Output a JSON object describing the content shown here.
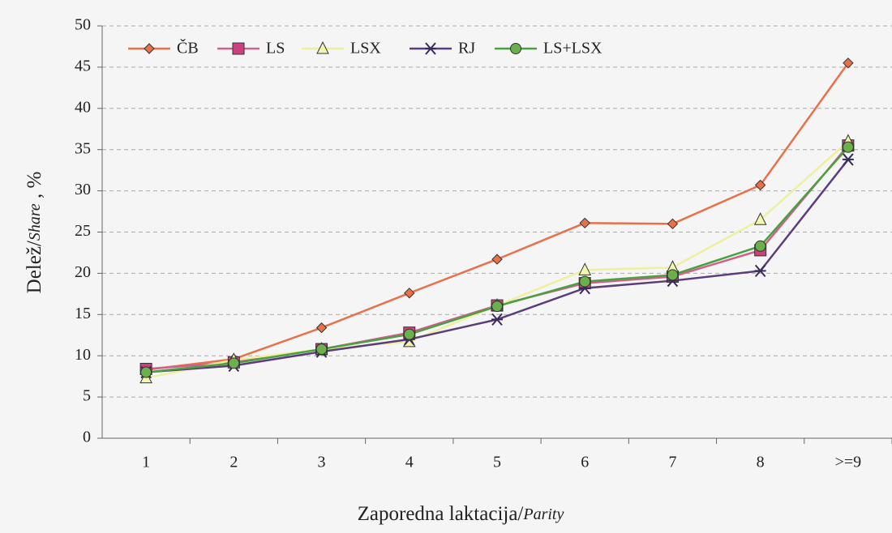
{
  "chart_data": {
    "type": "line",
    "y_label": {
      "text": "Delež/",
      "italic": "Share",
      "suffix": " , %"
    },
    "x_label": {
      "text": "Zaporedna laktacija/",
      "italic": "Parity"
    },
    "categories": [
      "1",
      "2",
      "3",
      "4",
      "5",
      "6",
      "7",
      "8",
      ">=9"
    ],
    "series": [
      {
        "name": "ČB",
        "color": "#e8714a",
        "marker": "diamond",
        "marker_color": "#e8714a",
        "values": [
          8.3,
          9.6,
          13.4,
          17.6,
          21.7,
          26.1,
          26.0,
          30.7,
          45.5
        ]
      },
      {
        "name": "LS",
        "color": "#d0608a",
        "marker": "square",
        "marker_color": "#cc4080",
        "values": [
          8.4,
          9.2,
          10.8,
          12.8,
          16.1,
          18.8,
          19.6,
          22.8,
          35.5
        ]
      },
      {
        "name": "LSX",
        "color": "#eef0a0",
        "marker": "triangle",
        "marker_color": "#f2f4b0",
        "values": [
          7.3,
          9.5,
          10.8,
          11.7,
          16.1,
          20.4,
          20.7,
          26.5,
          36.0
        ]
      },
      {
        "name": "RJ",
        "color": "#5b3c7c",
        "marker": "star",
        "marker_color": "#3a2a5c",
        "values": [
          8.0,
          8.8,
          10.5,
          12.0,
          14.4,
          18.2,
          19.1,
          20.3,
          33.8
        ]
      },
      {
        "name": "LS+LSX",
        "color": "#4aa040",
        "marker": "circle",
        "marker_color": "#6ab04c",
        "values": [
          8.0,
          9.1,
          10.8,
          12.6,
          16.0,
          19.0,
          19.8,
          23.3,
          35.3
        ]
      }
    ],
    "ylim": [
      0,
      50
    ],
    "yticks": [
      0,
      5,
      10,
      15,
      20,
      25,
      30,
      35,
      40,
      45,
      50
    ],
    "grid": true,
    "legend": "top-left"
  }
}
